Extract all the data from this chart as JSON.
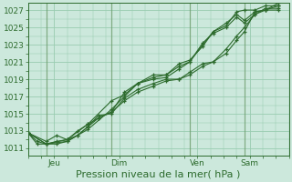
{
  "background_color": "#cce8dc",
  "grid_color": "#99ccb0",
  "line_color": "#2d6b2d",
  "vline_color": "#6e9e6e",
  "ylabel_ticks": [
    1011,
    1013,
    1015,
    1017,
    1019,
    1021,
    1023,
    1025,
    1027
  ],
  "xlabel": "Pression niveau de la mer( hPa )",
  "xlabel_fontsize": 8,
  "tick_fontsize": 6.5,
  "ylim": [
    1010.2,
    1027.8
  ],
  "xlim": [
    0,
    10.0
  ],
  "x_tick_positions": [
    1.0,
    3.5,
    6.5,
    8.5
  ],
  "x_tick_labels": [
    "Jeu",
    "Dim",
    "Ven",
    "Sam"
  ],
  "vline_positions": [
    0.7,
    3.2,
    6.2,
    8.3
  ],
  "lines": [
    {
      "x": [
        0.0,
        0.35,
        0.7,
        1.1,
        1.5,
        1.9,
        2.3,
        2.7,
        3.2,
        3.7,
        4.2,
        4.8,
        5.3,
        5.8,
        6.2,
        6.7,
        7.1,
        7.6,
        8.0,
        8.3,
        8.7,
        9.1,
        9.6
      ],
      "y": [
        1012.8,
        1011.8,
        1011.5,
        1011.8,
        1012.0,
        1013.0,
        1013.8,
        1014.5,
        1015.2,
        1016.5,
        1017.5,
        1018.2,
        1018.8,
        1019.0,
        1019.5,
        1020.5,
        1021.0,
        1022.0,
        1023.5,
        1024.5,
        1026.8,
        1027.0,
        1027.0
      ]
    },
    {
      "x": [
        0.0,
        0.35,
        0.7,
        1.1,
        1.5,
        1.9,
        2.3,
        2.7,
        3.2,
        3.7,
        4.2,
        4.8,
        5.3,
        5.8,
        6.2,
        6.7,
        7.1,
        7.6,
        8.0,
        8.3,
        8.7,
        9.1,
        9.6
      ],
      "y": [
        1012.8,
        1011.5,
        1011.5,
        1011.5,
        1011.8,
        1012.5,
        1013.5,
        1014.8,
        1015.0,
        1016.8,
        1017.8,
        1018.5,
        1019.0,
        1019.0,
        1019.8,
        1020.8,
        1021.0,
        1022.5,
        1024.0,
        1025.0,
        1026.5,
        1027.2,
        1027.2
      ]
    },
    {
      "x": [
        0.0,
        0.7,
        1.5,
        2.3,
        3.2,
        3.7,
        4.2,
        4.8,
        5.3,
        5.8,
        6.2,
        6.7,
        7.1,
        7.6,
        8.0,
        8.3,
        8.7,
        9.1,
        9.6
      ],
      "y": [
        1012.8,
        1011.5,
        1012.0,
        1013.8,
        1016.5,
        1017.2,
        1018.5,
        1019.2,
        1019.5,
        1020.5,
        1021.0,
        1023.0,
        1024.5,
        1025.5,
        1026.5,
        1025.8,
        1026.8,
        1027.0,
        1027.5
      ]
    },
    {
      "x": [
        0.0,
        0.7,
        1.1,
        1.5,
        1.9,
        2.3,
        2.7,
        3.2,
        3.7,
        4.2,
        4.8,
        5.3,
        5.8,
        6.2,
        6.7,
        7.1,
        7.6,
        8.0,
        8.3,
        8.7,
        9.1,
        9.6
      ],
      "y": [
        1012.8,
        1011.8,
        1012.5,
        1012.0,
        1012.5,
        1013.5,
        1014.5,
        1015.2,
        1017.5,
        1018.5,
        1019.5,
        1019.5,
        1020.8,
        1021.2,
        1022.8,
        1024.5,
        1025.2,
        1026.8,
        1027.0,
        1027.0,
        1027.5,
        1027.5
      ]
    },
    {
      "x": [
        0.0,
        0.7,
        1.5,
        2.3,
        3.2,
        3.7,
        4.2,
        4.8,
        5.3,
        5.8,
        6.2,
        6.7,
        7.1,
        7.6,
        8.0,
        8.3,
        8.7,
        9.1,
        9.6
      ],
      "y": [
        1012.8,
        1011.5,
        1011.8,
        1013.2,
        1015.5,
        1017.0,
        1018.5,
        1019.0,
        1019.2,
        1020.2,
        1021.0,
        1023.2,
        1024.3,
        1025.0,
        1026.2,
        1025.5,
        1026.5,
        1027.0,
        1027.8
      ]
    }
  ]
}
